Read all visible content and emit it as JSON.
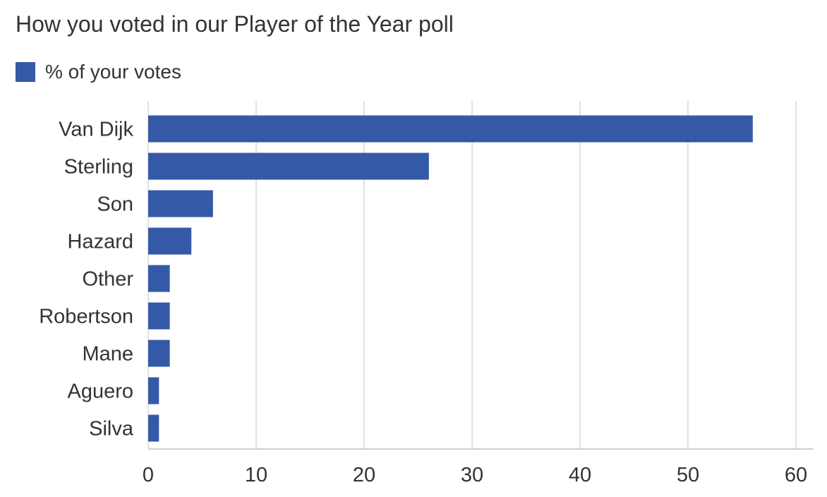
{
  "chart_data": {
    "type": "bar",
    "orientation": "horizontal",
    "title": "How you voted in our Player of the Year poll",
    "categories": [
      "Van Dijk",
      "Sterling",
      "Son",
      "Hazard",
      "Other",
      "Robertson",
      "Mane",
      "Aguero",
      "Silva"
    ],
    "series": [
      {
        "name": "% of your votes",
        "values": [
          56,
          26,
          6,
          4,
          2,
          2,
          2,
          1,
          1
        ]
      }
    ],
    "xlim": [
      0,
      60
    ],
    "xticks": [
      "0",
      "10",
      "20",
      "30",
      "40",
      "50",
      "60"
    ],
    "xlabel": "",
    "ylabel": "",
    "grid": true,
    "legend_position": "top-left"
  },
  "colors": {
    "bar": "#3459a6",
    "grid": "#e2e2e2",
    "axis": "#cfcfcf",
    "text": "#333333"
  }
}
